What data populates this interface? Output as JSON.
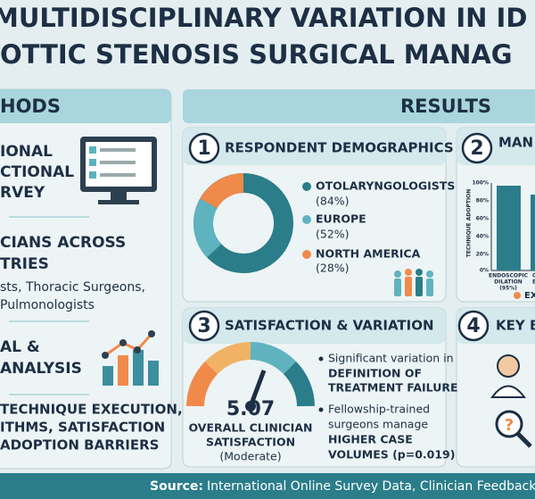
{
  "header": {
    "title_lines": [
      "MULTIDISCIPLINARY VARIATION IN ID",
      "OTTIC STENOSIS SURGICAL MANAG"
    ]
  },
  "methods": {
    "heading": "HODS",
    "items": [
      {
        "lines": [
          "IONAL",
          "CTIONAL",
          "RVEY"
        ]
      },
      {
        "lines": [
          "CIANS ACROSS",
          "TRIES"
        ],
        "detail": [
          "sts, Thoracic Surgeons,",
          "Pulmonologists"
        ]
      },
      {
        "lines": [
          "AL &",
          "ANALYSIS"
        ],
        "detail": [
          "TECHNIQUE EXECUTION,",
          "ITHMS, SATISFACTION",
          "ADOPTION BARRIERS"
        ]
      }
    ]
  },
  "results": {
    "heading": "RESULTS",
    "panels": [
      {
        "number": "1",
        "title": "RESPONDENT DEMOGRAPHICS",
        "legend": [
          {
            "label": "OTOLARYNGOLOGISTS",
            "pct": "(84%)"
          },
          {
            "label": "EUROPE",
            "pct": "(52%)"
          },
          {
            "label": "NORTH AMERICA",
            "pct": "(28%)"
          }
        ]
      },
      {
        "number": "2",
        "title": "MAN",
        "axis_title": "TECHNIQUE ADOPTION",
        "ticks": [
          "100%",
          "80%",
          "60%",
          "40%",
          "20%",
          "0%"
        ],
        "bar_labels": [
          "ENDOSCOPIC",
          "DILATION",
          "(95%)"
        ],
        "cut_labels": [
          "O",
          "E"
        ],
        "legend": "EX"
      },
      {
        "number": "3",
        "title": "SATISFACTION & VARIATION",
        "score": "5.07",
        "score_label": [
          "OVERALL CLINICIAN",
          "SATISFACTION",
          "(Moderate)"
        ],
        "bullets": [
          [
            "Significant variation in",
            "DEFINITION OF",
            "TREATMENT FAILURE"
          ],
          [
            "Fellowship-trained",
            "surgeons manage",
            "HIGHER CASE",
            "VOLUMES (p=0.019)"
          ]
        ]
      },
      {
        "number": "4",
        "title": "KEY B"
      }
    ]
  },
  "footer": {
    "label": "Source:",
    "text": "International Online Survey Data, Clinician Feedback"
  }
}
